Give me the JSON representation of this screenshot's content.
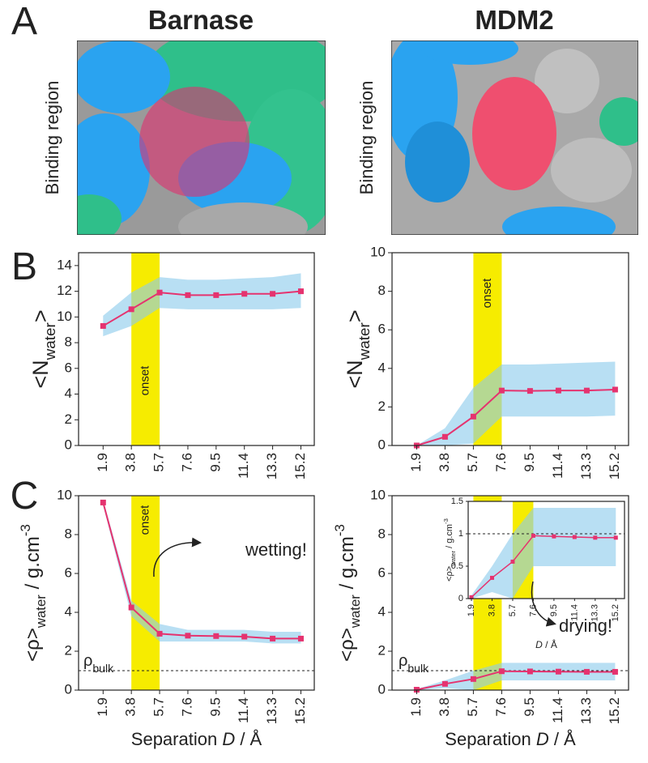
{
  "panel_letters": [
    "A",
    "B",
    "C"
  ],
  "images": [
    {
      "title": "Barnase",
      "label": "Binding region"
    },
    {
      "title": "MDM2",
      "label": "Binding region"
    }
  ],
  "chart_data": [
    {
      "type": "line",
      "x": [
        1.9,
        3.8,
        5.7,
        7.6,
        9.5,
        11.4,
        13.3,
        15.2
      ],
      "xticks": [
        1.9,
        3.8,
        5.7,
        7.6,
        9.5,
        11.4,
        13.3,
        15.2
      ],
      "xlim": [
        0.25,
        16.1
      ],
      "ylim": [
        0,
        15
      ],
      "yticks": [
        0,
        2,
        4,
        6,
        8,
        10,
        12,
        14
      ],
      "ylabel": [
        {
          "text": "<N"
        },
        {
          "text": "water",
          "baseline": "sub"
        },
        {
          "text": ">"
        }
      ],
      "highlight": {
        "range": [
          3.8,
          5.7
        ],
        "color": "#f6ec00",
        "label": "onset",
        "label_color": "#e5336f"
      },
      "series": [
        {
          "color": "#e5336f",
          "values": [
            9.3,
            10.6,
            11.9,
            11.7,
            11.7,
            11.8,
            11.8,
            12.0
          ],
          "band": {
            "color": "#8ccbeb",
            "lower": [
              8.5,
              9.3,
              10.7,
              10.6,
              10.6,
              10.6,
              10.6,
              10.7
            ],
            "upper": [
              10.1,
              11.9,
              13.1,
              12.9,
              12.9,
              13.0,
              13.1,
              13.4
            ]
          }
        }
      ]
    },
    {
      "type": "line",
      "x": [
        1.9,
        3.8,
        5.7,
        7.6,
        9.5,
        11.4,
        13.3,
        15.2
      ],
      "xticks": [
        1.9,
        3.8,
        5.7,
        7.6,
        9.5,
        11.4,
        13.3,
        15.2
      ],
      "xlim": [
        0.25,
        16.1
      ],
      "ylim": [
        0,
        10
      ],
      "yticks": [
        0,
        2,
        4,
        6,
        8,
        10
      ],
      "ylabel": [
        {
          "text": "<N"
        },
        {
          "text": "water",
          "baseline": "sub"
        },
        {
          "text": ">"
        }
      ],
      "highlight": {
        "range": [
          5.7,
          7.6
        ],
        "color": "#f6ec00",
        "label": "onset",
        "label_color": "#e5336f"
      },
      "series": [
        {
          "color": "#e5336f",
          "values": [
            0,
            0.45,
            1.5,
            2.85,
            2.83,
            2.85,
            2.85,
            2.9
          ],
          "band": {
            "color": "#8ccbeb",
            "lower": [
              0,
              0,
              0.1,
              1.5,
              1.5,
              1.5,
              1.5,
              1.55
            ],
            "upper": [
              0,
              0.9,
              3.0,
              4.2,
              4.2,
              4.25,
              4.3,
              4.35
            ]
          }
        }
      ]
    },
    {
      "type": "line",
      "x": [
        1.9,
        3.8,
        5.7,
        7.6,
        9.5,
        11.4,
        13.3,
        15.2
      ],
      "xticks": [
        1.9,
        3.8,
        5.7,
        7.6,
        9.5,
        11.4,
        13.3,
        15.2
      ],
      "xlim": [
        0.25,
        16.1
      ],
      "ylim": [
        0,
        10
      ],
      "yticks": [
        0,
        2,
        4,
        6,
        8,
        10
      ],
      "ylabel": [
        {
          "text": "<ρ>"
        },
        {
          "text": "water",
          "baseline": "sub"
        },
        {
          "text": " / g.cm"
        },
        {
          "text": "-3",
          "baseline": "super"
        }
      ],
      "xlabel": [
        {
          "text": "Separation "
        },
        {
          "text": "D",
          "style": "italic"
        },
        {
          "text": " / Å"
        }
      ],
      "highlight": {
        "range": [
          3.8,
          5.7
        ],
        "color": "#f6ec00",
        "label": "onset",
        "label_color": "#e5336f"
      },
      "hline": 1,
      "hline_label": [
        {
          "text": "ρ"
        },
        {
          "text": "bulk",
          "baseline": "sub"
        }
      ],
      "annotation": "wetting!",
      "series": [
        {
          "color": "#e5336f",
          "values": [
            9.65,
            4.25,
            2.9,
            2.8,
            2.78,
            2.75,
            2.65,
            2.65
          ],
          "band": {
            "color": "#8ccbeb",
            "lower": [
              9.5,
              3.8,
              2.5,
              2.5,
              2.5,
              2.5,
              2.4,
              2.4
            ],
            "upper": [
              9.8,
              4.6,
              3.4,
              3.1,
              3.1,
              3.1,
              3.0,
              3.0
            ]
          }
        }
      ]
    },
    {
      "type": "line",
      "x": [
        1.9,
        3.8,
        5.7,
        7.6,
        9.5,
        11.4,
        13.3,
        15.2
      ],
      "xticks": [
        1.9,
        3.8,
        5.7,
        7.6,
        9.5,
        11.4,
        13.3,
        15.2
      ],
      "xlim": [
        0.25,
        16.1
      ],
      "ylim": [
        0,
        10
      ],
      "yticks": [
        0,
        2,
        4,
        6,
        8,
        10
      ],
      "ylabel": [
        {
          "text": "<ρ>"
        },
        {
          "text": "water",
          "baseline": "sub"
        },
        {
          "text": " / g.cm"
        },
        {
          "text": "-3",
          "baseline": "super"
        }
      ],
      "xlabel": [
        {
          "text": "Separation "
        },
        {
          "text": "D",
          "style": "italic"
        },
        {
          "text": " / Å"
        }
      ],
      "highlight": {
        "range": [
          5.7,
          7.6
        ],
        "color": "#f6ec00"
      },
      "hline": 1,
      "hline_label": [
        {
          "text": "ρ"
        },
        {
          "text": "bulk",
          "baseline": "sub"
        }
      ],
      "series": [
        {
          "color": "#e5336f",
          "values": [
            0.02,
            0.32,
            0.57,
            0.97,
            0.96,
            0.95,
            0.94,
            0.94
          ],
          "band": {
            "color": "#8ccbeb",
            "lower": [
              0,
              0.1,
              0,
              0.5,
              0.5,
              0.5,
              0.5,
              0.5
            ],
            "upper": [
              0.05,
              0.5,
              1.0,
              1.4,
              1.4,
              1.4,
              1.4,
              1.4
            ]
          }
        }
      ]
    },
    {
      "type": "line",
      "x": [
        1.9,
        3.8,
        5.7,
        7.6,
        9.5,
        11.4,
        13.3,
        15.2
      ],
      "xticks": [
        1.9,
        3.8,
        5.7,
        7.6,
        9.5,
        11.4,
        13.3,
        15.2
      ],
      "xlim": [
        1.6,
        16.0
      ],
      "ylim": [
        0,
        1.5
      ],
      "yticks": [
        0,
        0.5,
        1,
        1.5
      ],
      "ylabel": [
        {
          "text": "<ρ>"
        },
        {
          "text": "water",
          "baseline": "sub"
        },
        {
          "text": " / g.cm"
        },
        {
          "text": "-3",
          "baseline": "super"
        }
      ],
      "xlabel": [
        {
          "text": "D",
          "style": "italic"
        },
        {
          "text": " / Å"
        }
      ],
      "highlight": {
        "range": [
          5.7,
          7.6
        ],
        "color": "#f6ec00"
      },
      "hline": 1,
      "annotation": "drying!",
      "series": [
        {
          "color": "#e5336f",
          "values": [
            0.02,
            0.32,
            0.57,
            0.97,
            0.96,
            0.95,
            0.94,
            0.94
          ],
          "band": {
            "color": "#8ccbeb",
            "lower": [
              0,
              0.1,
              0,
              0.5,
              0.5,
              0.5,
              0.5,
              0.5
            ],
            "upper": [
              0.05,
              0.5,
              1.0,
              1.4,
              1.4,
              1.4,
              1.4,
              1.4
            ]
          }
        }
      ]
    }
  ]
}
